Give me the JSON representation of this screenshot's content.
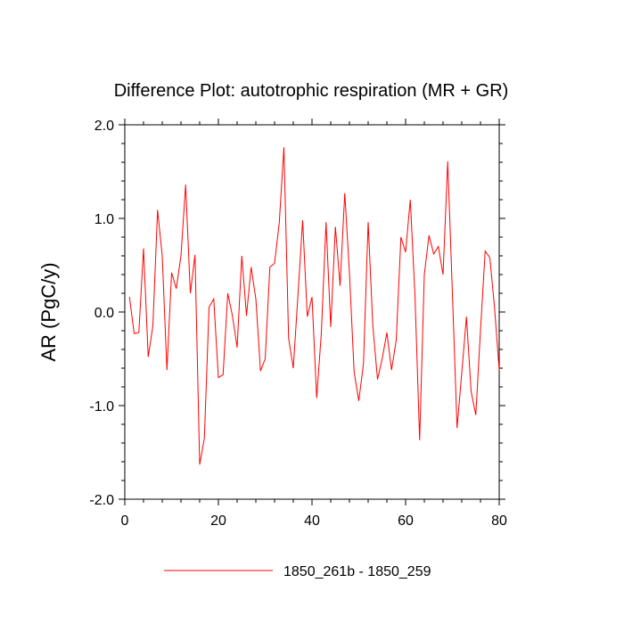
{
  "chart_data": {
    "type": "line",
    "title": "Difference Plot: autotrophic respiration (MR + GR)",
    "xlabel": "",
    "ylabel": "AR  (PgC/y)",
    "xlim": [
      0,
      80
    ],
    "ylim": [
      -2.0,
      2.0
    ],
    "x_ticks": [
      0,
      20,
      40,
      60,
      80
    ],
    "x_tick_labels": [
      "0",
      "20",
      "40",
      "60",
      "80"
    ],
    "y_ticks": [
      -2.0,
      -1.0,
      0.0,
      1.0,
      2.0
    ],
    "y_tick_labels": [
      "-2.0",
      "-1.0",
      "0.0",
      "1.0",
      "2.0"
    ],
    "grid": false,
    "legend_position": "bottom",
    "series": [
      {
        "name": "1850_261b - 1850_259",
        "color": "#ff0000",
        "x": [
          1,
          2,
          3,
          4,
          5,
          6,
          7,
          8,
          9,
          10,
          11,
          12,
          13,
          14,
          15,
          16,
          17,
          18,
          19,
          20,
          21,
          22,
          23,
          24,
          25,
          26,
          27,
          28,
          29,
          30,
          31,
          32,
          33,
          34,
          35,
          36,
          37,
          38,
          39,
          40,
          41,
          42,
          43,
          44,
          45,
          46,
          47,
          48,
          49,
          50,
          51,
          52,
          53,
          54,
          55,
          56,
          57,
          58,
          59,
          60,
          61,
          62,
          63,
          64,
          65,
          66,
          67,
          68,
          69,
          70,
          71,
          72,
          73,
          74,
          75,
          76,
          77,
          78,
          79,
          80
        ],
        "values": [
          0.16,
          -0.23,
          -0.22,
          0.68,
          -0.48,
          -0.15,
          1.09,
          0.6,
          -0.62,
          0.42,
          0.25,
          0.6,
          1.36,
          0.2,
          0.61,
          -1.63,
          -1.35,
          0.05,
          0.14,
          -0.7,
          -0.67,
          0.2,
          -0.04,
          -0.38,
          0.6,
          -0.04,
          0.48,
          0.14,
          -0.63,
          -0.5,
          0.48,
          0.52,
          0.95,
          1.76,
          -0.28,
          -0.6,
          0.18,
          0.98,
          -0.05,
          0.16,
          -0.92,
          -0.22,
          0.96,
          -0.16,
          0.91,
          0.28,
          1.27,
          0.42,
          -0.64,
          -0.95,
          -0.55,
          0.96,
          -0.15,
          -0.72,
          -0.5,
          -0.22,
          -0.62,
          -0.3,
          0.8,
          0.64,
          1.2,
          0.18,
          -1.37,
          0.4,
          0.82,
          0.62,
          0.7,
          0.4,
          1.61,
          0.2,
          -1.24,
          -0.65,
          -0.05,
          -0.85,
          -1.1,
          -0.2,
          0.65,
          0.58,
          0.05,
          -0.62
        ]
      }
    ]
  }
}
